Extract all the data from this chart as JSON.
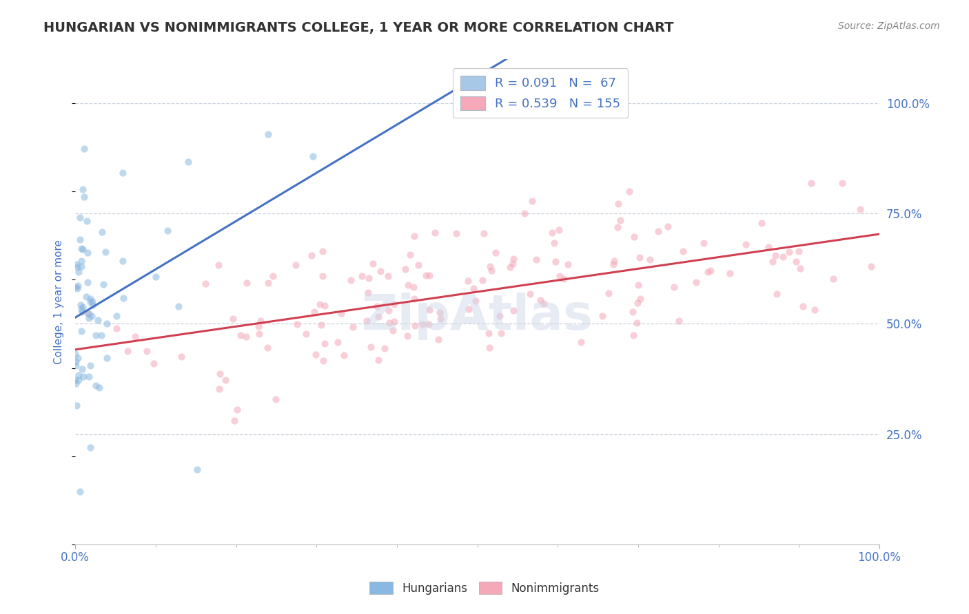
{
  "title": "HUNGARIAN VS NONIMMIGRANTS COLLEGE, 1 YEAR OR MORE CORRELATION CHART",
  "source_text": "Source: ZipAtlas.com",
  "ylabel": "College, 1 year or more",
  "xlim": [
    0.0,
    1.0
  ],
  "ylim": [
    0.0,
    1.1
  ],
  "ytick_positions": [
    0.25,
    0.5,
    0.75,
    1.0
  ],
  "ytick_labels": [
    "25.0%",
    "50.0%",
    "75.0%",
    "100.0%"
  ],
  "legend_entries": [
    {
      "label": "R = 0.091   N =  67",
      "color": "#a8c8e8"
    },
    {
      "label": "R = 0.539   N = 155",
      "color": "#f4a8b8"
    }
  ],
  "hungarian_color": "#89b8e0",
  "nonimmigrant_color": "#f4a8b8",
  "line_hungarian_color": "#4472c4",
  "line_nonimmigrant_color": "#d04050",
  "grid_color": "#c8d0dc",
  "background_color": "#ffffff",
  "title_color": "#333333",
  "axis_label_color": "#4472c4",
  "tick_label_color": "#4472c4",
  "watermark_text": "ZipAtlas",
  "watermark_color": "#d0d8e8",
  "scatter_alpha": 0.55,
  "scatter_size": 55,
  "title_fontsize": 14,
  "source_fontsize": 10,
  "tick_fontsize": 12,
  "ylabel_fontsize": 11
}
